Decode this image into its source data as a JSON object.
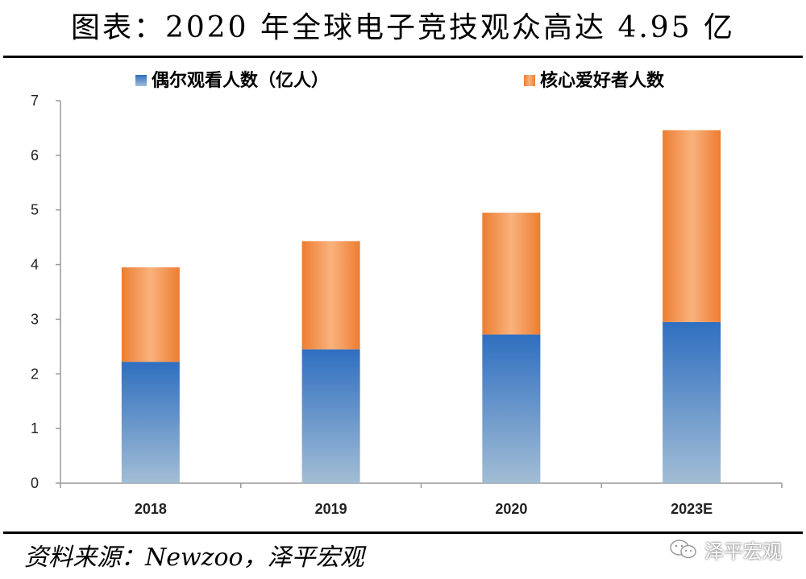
{
  "header": {
    "title": "图表：2020 年全球电子竞技观众高达 4.95 亿"
  },
  "footer": {
    "source": "资料来源：Newzoo，泽平宏观",
    "watermark": "泽平宏观"
  },
  "icons": {
    "watermark": "wechat-chat-bubbles-icon"
  },
  "colors": {
    "occasional_top": "#2f6fc0",
    "occasional_bottom": "#9bb5cf",
    "core_edge": "#ed7d31",
    "core_center": "#f8b07a"
  },
  "chart_data": {
    "type": "bar",
    "stacked": true,
    "categories": [
      "2018",
      "2019",
      "2020",
      "2023E"
    ],
    "series": [
      {
        "name": "偶尔观看人数（亿人）",
        "values": [
          2.22,
          2.45,
          2.72,
          2.95
        ]
      },
      {
        "name": "核心爱好者人数",
        "values": [
          1.73,
          1.98,
          2.23,
          3.51
        ]
      }
    ],
    "ylim": [
      0,
      7
    ],
    "yticks": [
      0,
      1,
      2,
      3,
      4,
      5,
      6,
      7
    ],
    "legend_position": "top",
    "grid": false
  }
}
